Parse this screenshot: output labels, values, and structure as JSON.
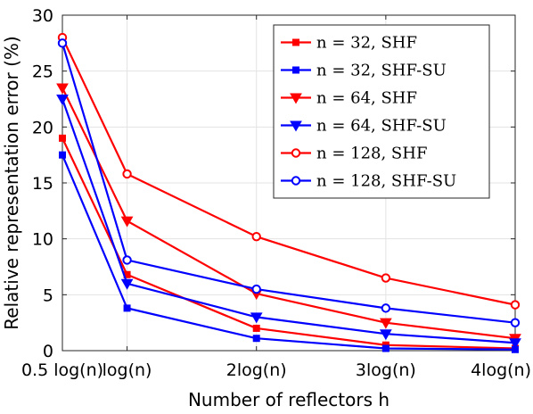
{
  "chart_data": {
    "type": "line",
    "xlabel": "Number of reflectors h",
    "ylabel": "Relative representation error (%)",
    "categories": [
      "0.5 log(n)",
      "log(n)",
      "2log(n)",
      "3log(n)",
      "4log(n)"
    ],
    "x": [
      0.5,
      1,
      2,
      3,
      4
    ],
    "xlim": [
      0.5,
      4
    ],
    "ylim": [
      0,
      30
    ],
    "yticks": [
      0,
      5,
      10,
      15,
      20,
      25,
      30
    ],
    "grid": true,
    "legend_position": "top-right",
    "series": [
      {
        "name": "n = 32, SHF",
        "color": "#ff0000",
        "marker": "square",
        "values": [
          19.0,
          6.8,
          2.0,
          0.5,
          0.2
        ]
      },
      {
        "name": "n = 32, SHF-SU",
        "color": "#0000ff",
        "marker": "square",
        "values": [
          17.5,
          3.8,
          1.1,
          0.2,
          0.1
        ]
      },
      {
        "name": "n = 64, SHF",
        "color": "#ff0000",
        "marker": "triangle-down",
        "values": [
          23.5,
          11.6,
          5.1,
          2.5,
          1.1
        ]
      },
      {
        "name": "n = 64, SHF-SU",
        "color": "#0000ff",
        "marker": "triangle-down",
        "values": [
          22.5,
          6.0,
          3.0,
          1.5,
          0.7
        ]
      },
      {
        "name": "n = 128, SHF",
        "color": "#ff0000",
        "marker": "circle",
        "values": [
          28.0,
          15.8,
          10.2,
          6.5,
          4.1
        ]
      },
      {
        "name": "n = 128, SHF-SU",
        "color": "#0000ff",
        "marker": "circle",
        "values": [
          27.5,
          8.1,
          5.5,
          3.8,
          2.5
        ]
      }
    ]
  }
}
